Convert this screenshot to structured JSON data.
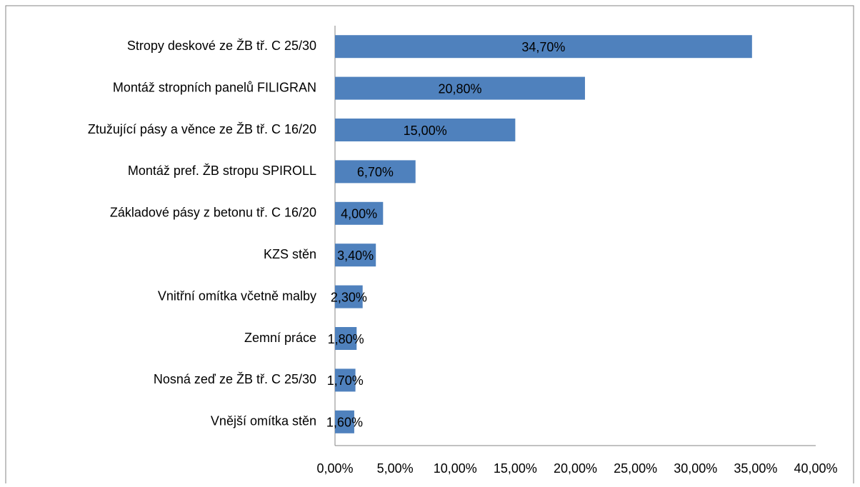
{
  "chart_data": {
    "type": "bar",
    "orientation": "horizontal",
    "categories": [
      "Stropy deskové ze ŽB tř. C 25/30",
      "Montáž stropních panelů FILIGRAN",
      "Ztužující pásy a věnce ze ŽB tř. C 16/20",
      "Montáž pref. ŽB stropu SPIROLL",
      "Základové pásy z betonu tř. C 16/20",
      "KZS stěn",
      "Vnitřní omítka včetně malby",
      "Zemní práce",
      "Nosná zeď ze ŽB tř. C 25/30",
      "Vnější omítka stěn"
    ],
    "values": [
      34.7,
      20.8,
      15.0,
      6.7,
      4.0,
      3.4,
      2.3,
      1.8,
      1.7,
      1.6
    ],
    "value_labels": [
      "34,70%",
      "20,80%",
      "15,00%",
      "6,70%",
      "4,00%",
      "3,40%",
      "2,30%",
      "1,80%",
      "1,70%",
      "1,60%"
    ],
    "color": "#4f81bd",
    "xlim": [
      0,
      40
    ],
    "xticks": [
      {
        "value": 0,
        "label": "0,00%"
      },
      {
        "value": 5,
        "label": "5,00%"
      },
      {
        "value": 10,
        "label": "10,00%"
      },
      {
        "value": 15,
        "label": "15,00%"
      },
      {
        "value": 20,
        "label": "20,00%"
      },
      {
        "value": 25,
        "label": "25,00%"
      },
      {
        "value": 30,
        "label": "30,00%"
      },
      {
        "value": 35,
        "label": "35,00%"
      },
      {
        "value": 40,
        "label": "40,00%"
      }
    ],
    "grid": false
  }
}
